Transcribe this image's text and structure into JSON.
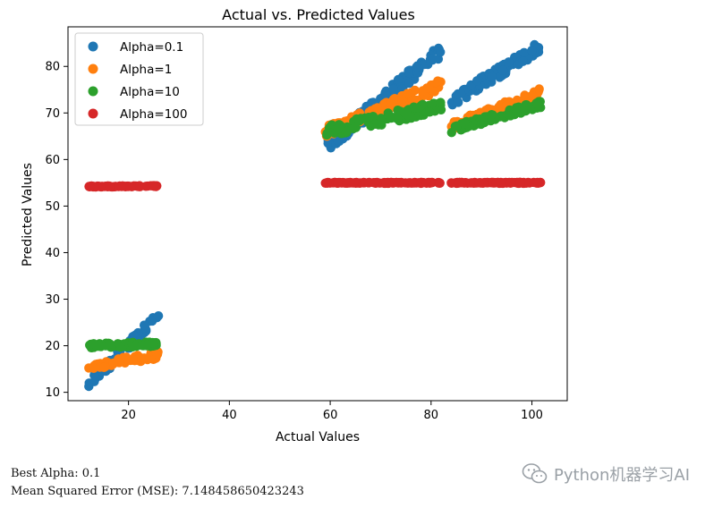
{
  "chart_data": {
    "type": "scatter",
    "title": "Actual vs. Predicted Values",
    "xlabel": "Actual Values",
    "ylabel": "Predicted Values",
    "xlim": [
      8,
      107
    ],
    "ylim": [
      8.2,
      88.5
    ],
    "xticks": [
      20,
      40,
      60,
      80,
      100
    ],
    "yticks": [
      10,
      20,
      30,
      40,
      50,
      60,
      70,
      80
    ],
    "grid": false,
    "legend_position": "top-left",
    "series": [
      {
        "name": "Alpha=0.1",
        "color": "#1f77b4",
        "clusters": [
          {
            "x_range": [
              12,
              26
            ],
            "y_at_start": 11.5,
            "y_at_end": 26.5,
            "spread": 2.0
          },
          {
            "x_range": [
              59,
              82
            ],
            "y_at_start": 62.5,
            "y_at_end": 83.5,
            "spread": 3.0
          },
          {
            "x_range": [
              84,
              102
            ],
            "y_at_start": 72.5,
            "y_at_end": 84.5,
            "spread": 2.5
          }
        ]
      },
      {
        "name": "Alpha=1",
        "color": "#ff7f0e",
        "clusters": [
          {
            "x_range": [
              12,
              26
            ],
            "y_at_start": 15.5,
            "y_at_end": 18.0,
            "spread": 1.5
          },
          {
            "x_range": [
              59,
              82
            ],
            "y_at_start": 66.0,
            "y_at_end": 76.0,
            "spread": 2.5
          },
          {
            "x_range": [
              84,
              102
            ],
            "y_at_start": 67.0,
            "y_at_end": 74.5,
            "spread": 2.0
          }
        ]
      },
      {
        "name": "Alpha=10",
        "color": "#2ca02c",
        "clusters": [
          {
            "x_range": [
              12,
              26
            ],
            "y_at_start": 20.0,
            "y_at_end": 20.4,
            "spread": 1.0
          },
          {
            "x_range": [
              59,
              82
            ],
            "y_at_start": 66.0,
            "y_at_end": 71.5,
            "spread": 2.5
          },
          {
            "x_range": [
              84,
              102
            ],
            "y_at_start": 66.5,
            "y_at_end": 72.0,
            "spread": 1.5
          }
        ]
      },
      {
        "name": "Alpha=100",
        "color": "#d62728",
        "clusters": [
          {
            "x_range": [
              12,
              26
            ],
            "y_at_start": 54.2,
            "y_at_end": 54.3,
            "spread": 0.2
          },
          {
            "x_range": [
              59,
              82
            ],
            "y_at_start": 55.0,
            "y_at_end": 55.0,
            "spread": 0.2
          },
          {
            "x_range": [
              84,
              102
            ],
            "y_at_start": 55.0,
            "y_at_end": 55.0,
            "spread": 0.2
          }
        ]
      }
    ]
  },
  "output": {
    "best_alpha": "Best Alpha: 0.1",
    "mse": "Mean Squared Error (MSE): 7.148458650423243"
  },
  "watermark": {
    "text": "Python机器学习AI",
    "icon": "wechat-icon"
  }
}
